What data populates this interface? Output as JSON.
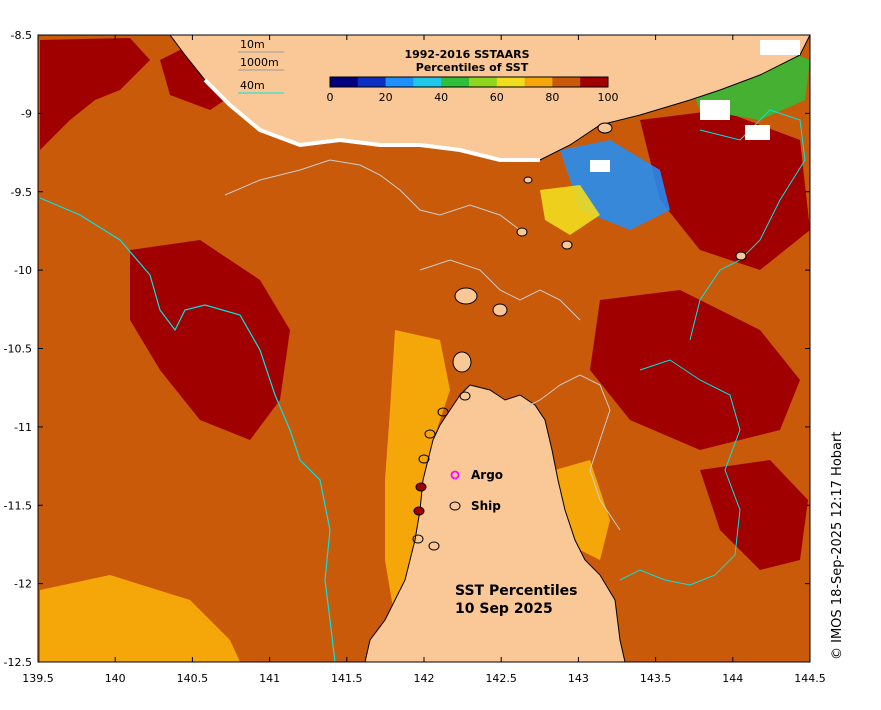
{
  "map": {
    "title_line1": "SST Percentiles",
    "title_line2": "10 Sep 2025",
    "copyright": "© IMOS 18-Sep-2025 12:17 Hobart",
    "lon_range": [
      139.5,
      144.5
    ],
    "lat_range": [
      -12.5,
      -8.5
    ],
    "lon_ticks": [
      "139.5",
      "140",
      "140.5",
      "141",
      "141.5",
      "142",
      "142.5",
      "143",
      "143.5",
      "144",
      "144.5"
    ],
    "lat_ticks": [
      "-8.5",
      "-9",
      "-9.5",
      "-10",
      "-10.5",
      "-11",
      "-11.5",
      "-12",
      "-12.5"
    ]
  },
  "legend": {
    "title_line1": "1992-2016 SSTAARS",
    "title_line2": "Percentiles of SST",
    "tick_labels": [
      "0",
      "20",
      "40",
      "60",
      "80",
      "100"
    ],
    "colors": [
      "#00007f",
      "#0a2fc2",
      "#1e90ff",
      "#1ec8e6",
      "#2fbf3b",
      "#8fd61e",
      "#f2dc1e",
      "#f5a70a",
      "#c85a0a",
      "#a00000"
    ]
  },
  "contours": {
    "label_10m": "10m",
    "label_1000m": "1000m",
    "label_40m": "40m",
    "color_10m": "#9a9a9a",
    "color_1000m": "#9a9a9a",
    "color_40m": "#00e5e5"
  },
  "markers": {
    "argo_label": "Argo",
    "ship_label": "Ship",
    "argo_color": "#ff00ff",
    "ship_color": "#000000"
  },
  "colors": {
    "land": "#fac896",
    "sea_base": "#c85a0a",
    "hot": "#a00000",
    "warm": "#f5a70a"
  }
}
